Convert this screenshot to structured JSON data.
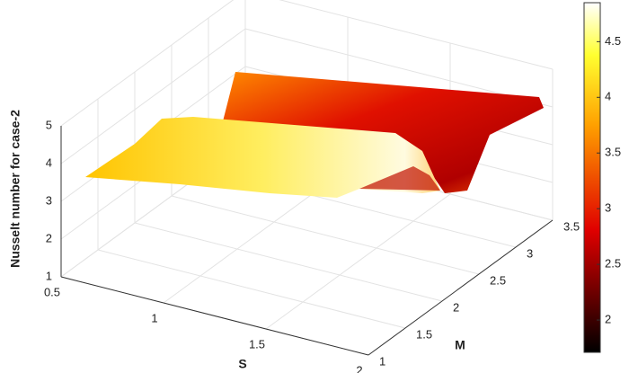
{
  "chart_data": {
    "type": "surface",
    "xlabel": "S",
    "ylabel": "M",
    "zlabel": "Nusselt number for case-2",
    "xlim": [
      0.5,
      2
    ],
    "xticks": [
      0.5,
      1,
      1.5,
      2
    ],
    "ylim": [
      1,
      3.5
    ],
    "yticks": [
      1,
      1.5,
      2,
      2.5,
      3,
      3.5
    ],
    "zlim": [
      1,
      5
    ],
    "zticks": [
      1,
      2,
      3,
      4,
      5
    ],
    "grid": true,
    "colormap": "hot",
    "clim": [
      1.71,
      4.85
    ],
    "cticks": [
      2,
      2.5,
      3,
      3.5,
      4,
      4.5
    ]
  }
}
